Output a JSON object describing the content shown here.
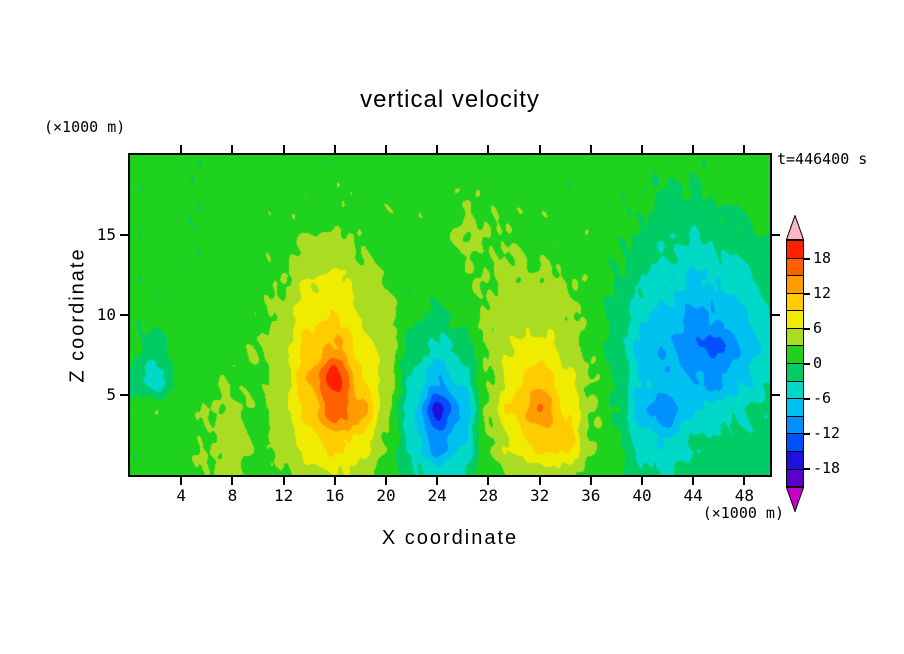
{
  "title": "vertical velocity",
  "annotations": {
    "time_label": "t=446400 s",
    "left_units": "(×1000 m)",
    "bottom_units": "(×1000 m)"
  },
  "axes": {
    "x": {
      "label": "X coordinate",
      "min": 0,
      "max": 50,
      "ticks": [
        4,
        8,
        12,
        16,
        20,
        24,
        28,
        32,
        36,
        40,
        44,
        48
      ]
    },
    "z": {
      "label": "Z coordinate",
      "min": 0,
      "max": 20,
      "ticks": [
        5,
        10,
        15
      ]
    }
  },
  "colorbar": {
    "min": -21,
    "max": 21,
    "interval": 3,
    "band_colors_low_to_high": [
      "#5a00c8",
      "#2010dc",
      "#0050ff",
      "#0090ff",
      "#00c0f0",
      "#00d8c8",
      "#00cc66",
      "#1ed21e",
      "#aadd22",
      "#f0ec00",
      "#ffcc00",
      "#ff9d00",
      "#ff6000",
      "#ff2000"
    ],
    "under_arrow_color": "#c800c8",
    "over_arrow_color": "#ffb4c8",
    "labels": [
      "18",
      "12",
      "6",
      "0",
      "-6",
      "-12",
      "-18"
    ],
    "label_values": [
      18,
      12,
      6,
      0,
      -6,
      -12,
      -18
    ]
  },
  "chart_data": {
    "type": "heatmap",
    "title": "vertical velocity",
    "xlabel": "X coordinate",
    "ylabel": "Z coordinate",
    "x_units": "(×1000 m)",
    "z_units": "(×1000 m)",
    "time_label": "t=446400 s",
    "xlim": [
      0,
      50
    ],
    "zlim": [
      0,
      20
    ],
    "contour_interval": 3,
    "legend_position": "right-colorbar",
    "x": [
      0,
      2,
      4,
      6,
      8,
      10,
      12,
      14,
      16,
      18,
      20,
      22,
      24,
      26,
      28,
      30,
      32,
      34,
      36,
      38,
      40,
      42,
      44,
      46,
      48,
      50
    ],
    "z": [
      0,
      2,
      4,
      6,
      8,
      10,
      12,
      14,
      16,
      18,
      20
    ],
    "values_rows_bottom_to_top": [
      [
        1,
        1,
        2,
        3,
        4,
        2,
        3,
        5,
        6,
        5,
        2,
        -2,
        -5,
        -3,
        2,
        4,
        5,
        4,
        2,
        1,
        -2,
        -3,
        -2,
        -1,
        -1,
        -1
      ],
      [
        1,
        1,
        2,
        3,
        5,
        2,
        4,
        7,
        10,
        8,
        3,
        -4,
        -11,
        -6,
        3,
        7,
        10,
        11,
        3,
        1,
        -4,
        -6,
        -3,
        -2,
        -2,
        -1
      ],
      [
        1,
        2,
        1,
        3,
        4,
        2,
        5,
        10,
        17,
        14,
        4,
        -5,
        -16,
        -9,
        4,
        10,
        15,
        9,
        3,
        0,
        -8,
        -11,
        -6,
        -5,
        -3,
        -2
      ],
      [
        -1,
        -5,
        1,
        2,
        3,
        2,
        5,
        12,
        20,
        10,
        5,
        -3,
        -9,
        -5,
        3,
        8,
        11,
        7,
        3,
        0,
        -6,
        -8,
        -9,
        -10,
        -6,
        -3
      ],
      [
        1,
        -2,
        2,
        2,
        2,
        3,
        5,
        10,
        13,
        8,
        5,
        -1,
        -4,
        -2,
        4,
        6,
        7,
        5,
        2,
        -1,
        -7,
        -9,
        -12,
        -13,
        -8,
        -4
      ],
      [
        1,
        1,
        2,
        2,
        2,
        2,
        4,
        8,
        9,
        6,
        4,
        1,
        -1,
        1,
        4,
        5,
        5,
        4,
        2,
        -1,
        -5,
        -7,
        -10,
        -9,
        -6,
        -3
      ],
      [
        1,
        1,
        1,
        2,
        2,
        2,
        3,
        6,
        7,
        5,
        3,
        1,
        1,
        2,
        3,
        4,
        4,
        3,
        2,
        0,
        -3,
        -5,
        -7,
        -6,
        -4,
        -2
      ],
      [
        1,
        1,
        1,
        1,
        2,
        2,
        2,
        4,
        4,
        3,
        2,
        2,
        2,
        3,
        3,
        3,
        2,
        2,
        2,
        1,
        -1,
        -3,
        -4,
        -3,
        -2,
        -1
      ],
      [
        1,
        1,
        1,
        1,
        2,
        2,
        2,
        2,
        2,
        2,
        2,
        2,
        2,
        3,
        3,
        2,
        2,
        2,
        2,
        1,
        0,
        -1,
        -2,
        -1,
        0,
        1
      ],
      [
        1,
        1,
        1,
        1,
        2,
        2,
        1,
        2,
        2,
        2,
        2,
        2,
        2,
        2,
        2,
        2,
        2,
        1,
        1,
        1,
        1,
        0,
        0,
        1,
        1,
        1
      ],
      [
        1,
        1,
        1,
        1,
        1,
        1,
        1,
        1,
        1,
        1,
        1,
        1,
        1,
        1,
        1,
        1,
        1,
        1,
        1,
        1,
        1,
        1,
        1,
        1,
        1,
        1
      ]
    ]
  }
}
